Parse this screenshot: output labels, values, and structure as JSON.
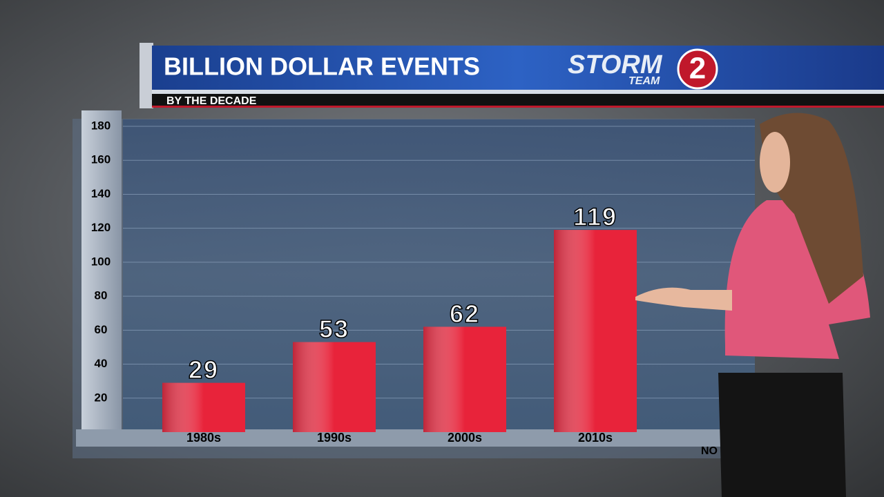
{
  "chart_data": {
    "type": "bar",
    "title": "BILLION DOLLAR EVENTS",
    "subtitle": "BY THE DECADE",
    "categories": [
      "1980s",
      "1990s",
      "2000s",
      "2010s"
    ],
    "values": [
      29,
      53,
      62,
      119
    ],
    "color": "#e8233a",
    "ylim": [
      0,
      180
    ],
    "yticks": [
      20,
      40,
      60,
      80,
      100,
      120,
      140,
      160,
      180
    ],
    "grid": true
  },
  "logo": {
    "text": "STORM",
    "sub": "TEAM",
    "number": "2"
  },
  "footer_fragment": "NO"
}
